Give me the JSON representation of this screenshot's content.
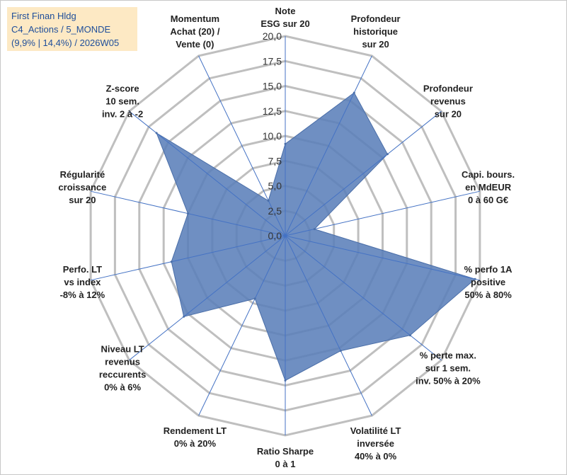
{
  "info_box": {
    "line1": "First Finan Hldg",
    "line2": "C4_Actions / 5_MONDE",
    "line3": "(9,9% | 14,4%) / 2026W05"
  },
  "colors": {
    "grid": "#bfbfbf",
    "spoke": "#4472c4",
    "fill": "#5b7fba",
    "text": "#222222",
    "info_bg": "#fde9c4",
    "info_text": "#1f4e9a"
  },
  "chart_data": {
    "type": "radar",
    "rmin": 0,
    "rmax": 20,
    "ticks": [
      "0,0",
      "2,5",
      "5,0",
      "7,5",
      "10,0",
      "12,5",
      "15,0",
      "17,5",
      "20,0"
    ],
    "tick_values": [
      0,
      2.5,
      5,
      7.5,
      10,
      12.5,
      15,
      17.5,
      20
    ],
    "axes": [
      {
        "lines": [
          "Note",
          "ESG sur 20"
        ],
        "value": 9.2
      },
      {
        "lines": [
          "Profondeur",
          "historique",
          "sur 20"
        ],
        "value": 15.9
      },
      {
        "lines": [
          "Profondeur",
          "revenus",
          "sur 20"
        ],
        "value": 13.1
      },
      {
        "lines": [
          "Capi. bours.",
          "en MdEUR",
          "0 à 60 G€"
        ],
        "value": 3.0
      },
      {
        "lines": [
          "% perfo 1A",
          "positive",
          "50% à 80%"
        ],
        "value": 19.5
      },
      {
        "lines": [
          "% perte max.",
          "sur 1 sem.",
          "inv. 50% à 20%"
        ],
        "value": 16.0
      },
      {
        "lines": [
          "Volatilité LT",
          "inversée",
          "40% à 0%"
        ],
        "value": 12.8
      },
      {
        "lines": [
          "Ratio Sharpe",
          "0 à 1"
        ],
        "value": 14.5
      },
      {
        "lines": [
          "Rendement LT",
          "0% à 20%"
        ],
        "value": 7.0
      },
      {
        "lines": [
          "Niveau LT",
          "revenus",
          "reccurents",
          "0% à 6%"
        ],
        "value": 13.0
      },
      {
        "lines": [
          "Perfo. LT",
          "vs index",
          "-8% à 12%"
        ],
        "value": 11.7
      },
      {
        "lines": [
          "Régularité",
          "croissance",
          "sur 20"
        ],
        "value": 10.0
      },
      {
        "lines": [
          "Z-score",
          "10 sem.",
          "inv. 2 à -2"
        ],
        "value": 16.5
      },
      {
        "lines": [
          "Momentum",
          "Achat (20) /",
          "Vente (0)"
        ],
        "value": 3.9
      }
    ]
  }
}
